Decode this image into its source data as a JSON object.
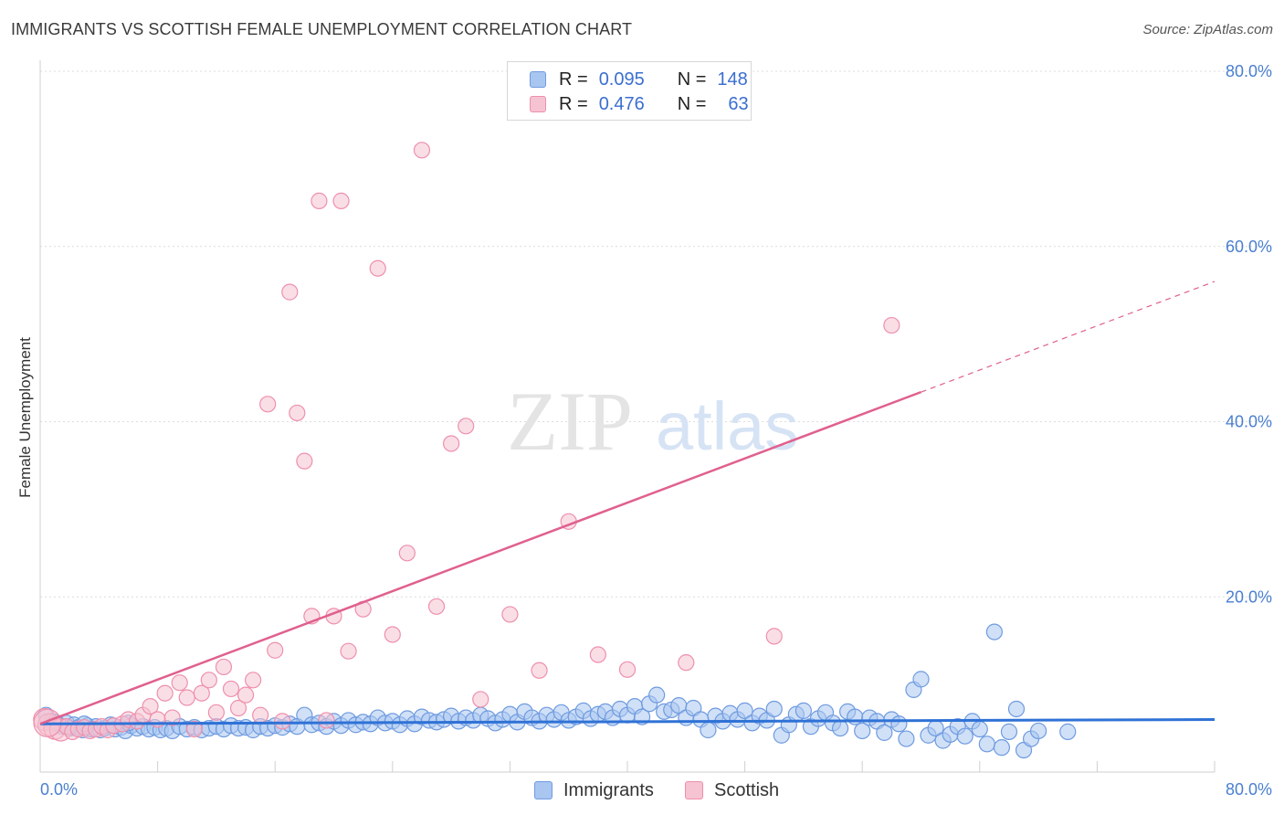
{
  "title": "IMMIGRANTS VS SCOTTISH FEMALE UNEMPLOYMENT CORRELATION CHART",
  "source": "Source: ZipAtlas.com",
  "watermark": {
    "zip": "ZIP",
    "atlas": "atlas"
  },
  "colors": {
    "immigrants_fill": "#a9c6f0",
    "immigrants_stroke": "#6f9be0",
    "immigrants_line": "#2f72d6",
    "scottish_fill": "#f6c3d2",
    "scottish_stroke": "#ee90ad",
    "scottish_line": "#e0608e",
    "tick_text": "#4a7fcf",
    "grid": "#dcdcdc"
  },
  "legend": {
    "rows": [
      {
        "r_label": "R =",
        "r_value": "0.095",
        "n_label": "N =",
        "n_value": "148"
      },
      {
        "r_label": "R =",
        "r_value": "0.476",
        "n_label": "N =",
        "n_value": "63"
      }
    ],
    "bottom": [
      "Immigrants",
      "Scottish"
    ]
  },
  "chart_data": {
    "type": "scatter",
    "title": "IMMIGRANTS VS SCOTTISH FEMALE UNEMPLOYMENT CORRELATION CHART",
    "xlabel": "",
    "ylabel": "Female Unemployment",
    "xlim": [
      0,
      80
    ],
    "ylim": [
      0,
      80
    ],
    "x_ticks": [
      {
        "value": 0,
        "label": "0.0%"
      },
      {
        "value": 80,
        "label": "80.0%"
      }
    ],
    "y_ticks": [
      {
        "value": 20,
        "label": "20.0%"
      },
      {
        "value": 40,
        "label": "40.0%"
      },
      {
        "value": 60,
        "label": "60.0%"
      },
      {
        "value": 80,
        "label": "80.0%"
      }
    ],
    "series": [
      {
        "name": "Immigrants",
        "r": 0.095,
        "n": 148,
        "trend": {
          "x0": 0,
          "y0": 5.5,
          "x1": 80,
          "y1": 6.0,
          "dashed_from": null
        },
        "points": [
          [
            0.4,
            6.5
          ],
          [
            0.8,
            5.8
          ],
          [
            1.2,
            5.5
          ],
          [
            1.5,
            5.2
          ],
          [
            1.8,
            5.6
          ],
          [
            2.0,
            5.0
          ],
          [
            2.3,
            5.4
          ],
          [
            2.6,
            5.1
          ],
          [
            2.9,
            4.8
          ],
          [
            3.2,
            5.3
          ],
          [
            3.5,
            4.9
          ],
          [
            3.8,
            5.2
          ],
          [
            4.1,
            4.8
          ],
          [
            4.4,
            5.0
          ],
          [
            4.8,
            5.4
          ],
          [
            5.1,
            4.9
          ],
          [
            5.5,
            5.1
          ],
          [
            5.8,
            4.7
          ],
          [
            6.2,
            5.3
          ],
          [
            6.6,
            5.0
          ],
          [
            7.0,
            5.2
          ],
          [
            7.4,
            4.9
          ],
          [
            7.8,
            5.1
          ],
          [
            8.2,
            4.8
          ],
          [
            8.6,
            5.0
          ],
          [
            9.0,
            4.7
          ],
          [
            9.5,
            5.2
          ],
          [
            10.0,
            4.9
          ],
          [
            10.5,
            5.1
          ],
          [
            11.0,
            4.8
          ],
          [
            11.5,
            5.0
          ],
          [
            12.0,
            5.2
          ],
          [
            12.5,
            4.9
          ],
          [
            13.0,
            5.3
          ],
          [
            13.5,
            5.0
          ],
          [
            14.0,
            5.1
          ],
          [
            14.5,
            4.8
          ],
          [
            15.0,
            5.2
          ],
          [
            15.5,
            5.0
          ],
          [
            16.0,
            5.3
          ],
          [
            16.5,
            5.1
          ],
          [
            17.0,
            5.5
          ],
          [
            17.5,
            5.2
          ],
          [
            18.0,
            6.5
          ],
          [
            18.5,
            5.4
          ],
          [
            19.0,
            5.6
          ],
          [
            19.5,
            5.2
          ],
          [
            20.0,
            5.8
          ],
          [
            20.5,
            5.3
          ],
          [
            21.0,
            5.9
          ],
          [
            21.5,
            5.4
          ],
          [
            22.0,
            5.7
          ],
          [
            22.5,
            5.5
          ],
          [
            23.0,
            6.2
          ],
          [
            23.5,
            5.6
          ],
          [
            24.0,
            5.8
          ],
          [
            24.5,
            5.4
          ],
          [
            25.0,
            6.1
          ],
          [
            25.5,
            5.5
          ],
          [
            26.0,
            6.3
          ],
          [
            26.5,
            5.9
          ],
          [
            27.0,
            5.7
          ],
          [
            27.5,
            6.0
          ],
          [
            28.0,
            6.4
          ],
          [
            28.5,
            5.8
          ],
          [
            29.0,
            6.2
          ],
          [
            29.5,
            5.9
          ],
          [
            30.0,
            6.5
          ],
          [
            30.5,
            6.1
          ],
          [
            31.0,
            5.6
          ],
          [
            31.5,
            6.0
          ],
          [
            32.0,
            6.6
          ],
          [
            32.5,
            5.7
          ],
          [
            33.0,
            6.9
          ],
          [
            33.5,
            6.2
          ],
          [
            34.0,
            5.8
          ],
          [
            34.5,
            6.5
          ],
          [
            35.0,
            6.0
          ],
          [
            35.5,
            6.8
          ],
          [
            36.0,
            5.9
          ],
          [
            36.5,
            6.3
          ],
          [
            37.0,
            7.0
          ],
          [
            37.5,
            6.1
          ],
          [
            38.0,
            6.6
          ],
          [
            38.5,
            6.9
          ],
          [
            39.0,
            6.2
          ],
          [
            39.5,
            7.2
          ],
          [
            40.0,
            6.5
          ],
          [
            40.5,
            7.5
          ],
          [
            41.0,
            6.3
          ],
          [
            41.5,
            7.8
          ],
          [
            42.0,
            8.8
          ],
          [
            42.5,
            6.9
          ],
          [
            43.0,
            7.1
          ],
          [
            43.5,
            7.6
          ],
          [
            44.0,
            6.2
          ],
          [
            44.5,
            7.3
          ],
          [
            45.0,
            6.0
          ],
          [
            45.5,
            4.8
          ],
          [
            46.0,
            6.4
          ],
          [
            46.5,
            5.8
          ],
          [
            47.0,
            6.7
          ],
          [
            47.5,
            6.0
          ],
          [
            48.0,
            7.0
          ],
          [
            48.5,
            5.6
          ],
          [
            49.0,
            6.4
          ],
          [
            49.5,
            5.9
          ],
          [
            50.0,
            7.2
          ],
          [
            50.5,
            4.2
          ],
          [
            51.0,
            5.4
          ],
          [
            51.5,
            6.6
          ],
          [
            52.0,
            7.0
          ],
          [
            52.5,
            5.2
          ],
          [
            53.0,
            6.1
          ],
          [
            53.5,
            6.8
          ],
          [
            54.0,
            5.6
          ],
          [
            54.5,
            5.0
          ],
          [
            55.0,
            6.9
          ],
          [
            55.5,
            6.3
          ],
          [
            56.0,
            4.7
          ],
          [
            56.5,
            6.2
          ],
          [
            57.0,
            5.8
          ],
          [
            57.5,
            4.5
          ],
          [
            58.0,
            6.0
          ],
          [
            58.5,
            5.5
          ],
          [
            59.0,
            3.8
          ],
          [
            59.5,
            9.4
          ],
          [
            60.0,
            10.6
          ],
          [
            60.5,
            4.2
          ],
          [
            61.0,
            5.0
          ],
          [
            61.5,
            3.6
          ],
          [
            62.0,
            4.3
          ],
          [
            62.5,
            5.2
          ],
          [
            63.0,
            4.1
          ],
          [
            63.5,
            5.8
          ],
          [
            64.0,
            4.9
          ],
          [
            64.5,
            3.2
          ],
          [
            65.0,
            16.0
          ],
          [
            65.5,
            2.8
          ],
          [
            66.0,
            4.6
          ],
          [
            66.5,
            7.2
          ],
          [
            67.0,
            2.5
          ],
          [
            67.5,
            3.8
          ],
          [
            68.0,
            4.7
          ],
          [
            70.0,
            4.6
          ],
          [
            1.0,
            5.7
          ],
          [
            3.0,
            5.5
          ],
          [
            5.0,
            5.3
          ],
          [
            6.0,
            5.6
          ]
        ],
        "color": "#a9c6f0"
      },
      {
        "name": "Scottish",
        "r": 0.476,
        "n": 63,
        "trend": {
          "x0": 0,
          "y0": 5.5,
          "x1": 80,
          "y1": 56,
          "dashed_from": 60
        },
        "points": [
          [
            0.3,
            6.0
          ],
          [
            0.6,
            5.4
          ],
          [
            1.0,
            5.0
          ],
          [
            1.4,
            4.8
          ],
          [
            1.8,
            5.2
          ],
          [
            2.2,
            4.6
          ],
          [
            2.6,
            4.9
          ],
          [
            3.0,
            5.1
          ],
          [
            3.4,
            4.7
          ],
          [
            3.8,
            4.9
          ],
          [
            4.2,
            5.2
          ],
          [
            4.6,
            4.8
          ],
          [
            5.0,
            5.3
          ],
          [
            5.6,
            5.5
          ],
          [
            6.0,
            6.0
          ],
          [
            6.6,
            5.8
          ],
          [
            7.0,
            6.5
          ],
          [
            7.5,
            7.5
          ],
          [
            8.0,
            6.0
          ],
          [
            8.5,
            9.0
          ],
          [
            9.0,
            6.2
          ],
          [
            9.5,
            10.2
          ],
          [
            10.0,
            8.5
          ],
          [
            10.5,
            4.9
          ],
          [
            11.0,
            9.0
          ],
          [
            11.5,
            10.5
          ],
          [
            12.0,
            6.8
          ],
          [
            12.5,
            12.0
          ],
          [
            13.0,
            9.5
          ],
          [
            13.5,
            7.3
          ],
          [
            14.0,
            8.8
          ],
          [
            14.5,
            10.5
          ],
          [
            15.0,
            6.5
          ],
          [
            15.5,
            42.0
          ],
          [
            16.0,
            13.9
          ],
          [
            16.5,
            5.8
          ],
          [
            17.0,
            54.8
          ],
          [
            17.5,
            41.0
          ],
          [
            18.0,
            35.5
          ],
          [
            18.5,
            17.8
          ],
          [
            19.0,
            65.2
          ],
          [
            19.5,
            5.9
          ],
          [
            20.0,
            17.8
          ],
          [
            20.5,
            65.2
          ],
          [
            21.0,
            13.8
          ],
          [
            22.0,
            18.6
          ],
          [
            23.0,
            57.5
          ],
          [
            24.0,
            15.7
          ],
          [
            25.0,
            25.0
          ],
          [
            26.0,
            71.0
          ],
          [
            27.0,
            18.9
          ],
          [
            28.0,
            37.5
          ],
          [
            29.0,
            39.5
          ],
          [
            30.0,
            8.3
          ],
          [
            32.0,
            18.0
          ],
          [
            34.0,
            11.6
          ],
          [
            36.0,
            28.6
          ],
          [
            38.0,
            13.4
          ],
          [
            40.0,
            11.7
          ],
          [
            44.0,
            12.5
          ],
          [
            50.0,
            15.5
          ],
          [
            58.0,
            51.0
          ],
          [
            0.5,
            5.6
          ]
        ],
        "color": "#f6c3d2"
      }
    ]
  }
}
